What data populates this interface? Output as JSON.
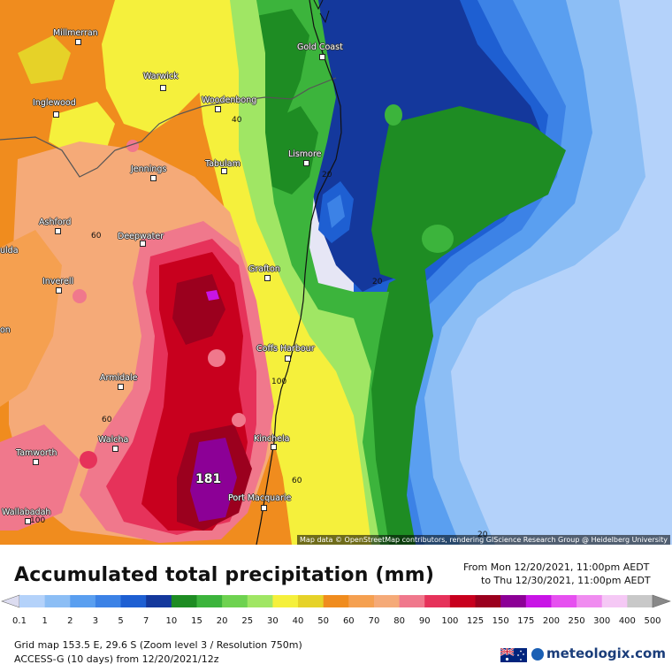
{
  "map": {
    "places": [
      {
        "id": "millmerran",
        "name": "Millmerran"
      },
      {
        "id": "warwick",
        "name": "Warwick"
      },
      {
        "id": "inglewood",
        "name": "Inglewood"
      },
      {
        "id": "woodenbong",
        "name": "Woodenbong"
      },
      {
        "id": "gold-coast",
        "name": "Gold Coast"
      },
      {
        "id": "lismore",
        "name": "Lismore"
      },
      {
        "id": "jennings",
        "name": "Jennings"
      },
      {
        "id": "tabulam",
        "name": "Tabulam"
      },
      {
        "id": "ashford",
        "name": "Ashford"
      },
      {
        "id": "deepwater",
        "name": "Deepwater"
      },
      {
        "id": "grafton",
        "name": "Grafton"
      },
      {
        "id": "inverell",
        "name": "Inverell"
      },
      {
        "id": "coffs-harbour",
        "name": "Coffs Harbour"
      },
      {
        "id": "armidale",
        "name": "Armidale"
      },
      {
        "id": "walcha",
        "name": "Walcha"
      },
      {
        "id": "kinchela",
        "name": "Kinchela"
      },
      {
        "id": "tamworth",
        "name": "Tamworth"
      },
      {
        "id": "port-macquarie",
        "name": "Port Macquarie"
      },
      {
        "id": "wallabadah",
        "name": "Wallabadah"
      },
      {
        "id": "ulda",
        "name": "ulda"
      },
      {
        "id": "on",
        "name": "on"
      }
    ],
    "contour_labels": [
      "40",
      "20",
      "60",
      "20",
      "100",
      "60",
      "60",
      "20",
      "100"
    ],
    "max_value_label": "181",
    "attribution": "Map data © OpenStreetMap contributors, rendering GIScience Research Group @ Heidelberg University"
  },
  "title": "Accumulated total precipitation (mm)",
  "period": {
    "from": "From Mon 12/20/2021, 11:00pm AEDT",
    "to": "to Thu 12/30/2021, 11:00pm AEDT"
  },
  "legend": {
    "values": [
      "0.1",
      "1",
      "2",
      "3",
      "5",
      "7",
      "10",
      "15",
      "20",
      "25",
      "30",
      "40",
      "50",
      "60",
      "70",
      "80",
      "90",
      "100",
      "125",
      "150",
      "175",
      "200",
      "250",
      "300",
      "400",
      "500"
    ],
    "colors": [
      "#dcdcf0",
      "#b4d2fa",
      "#8cbef5",
      "#5a9ff0",
      "#3c82e6",
      "#1e5fd2",
      "#14389c",
      "#1e8c23",
      "#3cb43c",
      "#6ed250",
      "#a0e664",
      "#f5f03c",
      "#e6d228",
      "#f08c1e",
      "#f5a050",
      "#f5aa78",
      "#f0788c",
      "#e6325a",
      "#c8001e",
      "#9b001e",
      "#8c0096",
      "#c814e6",
      "#e650f0",
      "#f08cf0",
      "#f5c8f5",
      "#c8c8c8"
    ]
  },
  "meta": {
    "grid": "Grid map 153.5 E, 29.6 S (Zoom level 3 / Resolution 750m)",
    "model": "ACCESS-G (10 days) from 12/20/2021/12z"
  },
  "brand": {
    "name": "meteologix.com",
    "flag": "australia-flag"
  }
}
